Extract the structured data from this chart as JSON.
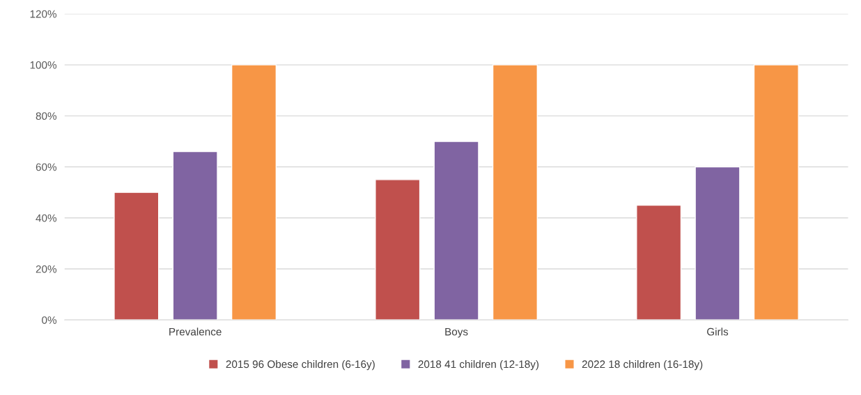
{
  "chart_data": {
    "type": "bar",
    "categories": [
      "Prevalence",
      "Boys",
      "Girls"
    ],
    "series": [
      {
        "name": "2015 96 Obese children (6-16y)",
        "color": "#c0504d",
        "values": [
          50,
          55,
          45
        ]
      },
      {
        "name": "2018 41 children (12-18y)",
        "color": "#8064a2",
        "values": [
          66,
          70,
          60
        ]
      },
      {
        "name": "2022 18 children (16-18y)",
        "color": "#f79646",
        "values": [
          100,
          100,
          100
        ]
      }
    ],
    "ylim": [
      0,
      120
    ],
    "yticks": [
      {
        "value": 0,
        "label": "0%"
      },
      {
        "value": 20,
        "label": "20%"
      },
      {
        "value": 40,
        "label": "40%"
      },
      {
        "value": 60,
        "label": "60%"
      },
      {
        "value": 80,
        "label": "80%"
      },
      {
        "value": 100,
        "label": "100%"
      },
      {
        "value": 120,
        "label": "120%"
      }
    ],
    "grid": "y",
    "legend": "bottom"
  }
}
